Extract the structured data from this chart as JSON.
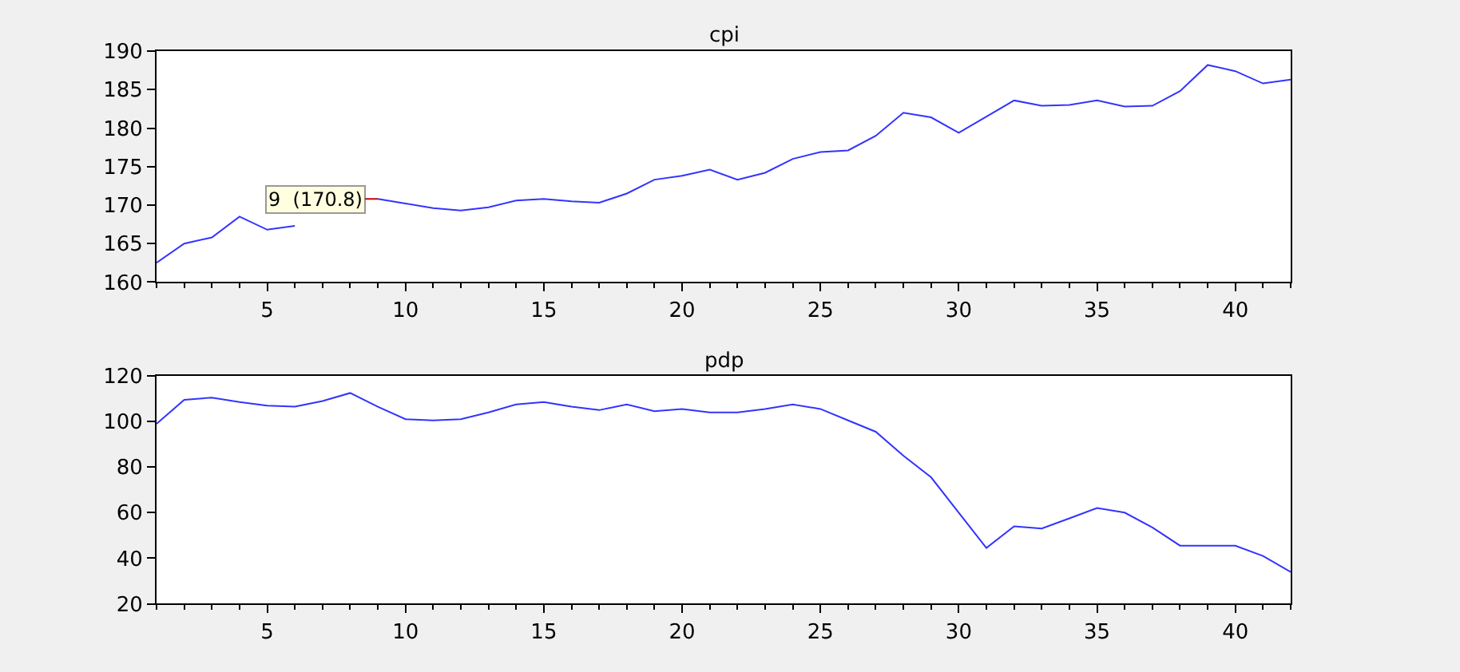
{
  "chart_data": [
    {
      "type": "line",
      "title": "cpi",
      "color": "#3333ff",
      "x": [
        1,
        2,
        3,
        4,
        5,
        6,
        7,
        8,
        9,
        10,
        11,
        12,
        13,
        14,
        15,
        16,
        17,
        18,
        19,
        20,
        21,
        22,
        23,
        24,
        25,
        26,
        27,
        28,
        29,
        30,
        31,
        32,
        33,
        34,
        35,
        36,
        37,
        38,
        39,
        40,
        41,
        42
      ],
      "values": [
        162.5,
        165,
        165.8,
        168.5,
        166.8,
        167.3,
        null,
        null,
        170.8,
        170.2,
        169.6,
        169.3,
        169.7,
        170.6,
        170.8,
        170.5,
        170.3,
        171.5,
        173.3,
        173.8,
        174.6,
        173.3,
        174.2,
        176,
        176.9,
        177.1,
        179,
        182,
        181.4,
        179.4,
        181.5,
        183.6,
        182.9,
        183,
        183.6,
        182.8,
        182.9,
        184.8,
        188.2,
        187.4,
        185.8,
        186.3
      ],
      "xlim": [
        1,
        42
      ],
      "xticks": [
        5,
        10,
        15,
        20,
        25,
        30,
        35,
        40
      ],
      "ylim": [
        160,
        190
      ],
      "yticks": [
        160,
        165,
        170,
        175,
        180,
        185,
        190
      ],
      "annotations": [
        {
          "text": "9  (170.8)",
          "x": 9,
          "y": 170.8
        }
      ]
    },
    {
      "type": "line",
      "title": "pdp",
      "color": "#3333ff",
      "x": [
        1,
        2,
        3,
        4,
        5,
        6,
        7,
        8,
        9,
        10,
        11,
        12,
        13,
        14,
        15,
        16,
        17,
        18,
        19,
        20,
        21,
        22,
        23,
        24,
        25,
        26,
        27,
        28,
        29,
        30,
        31,
        32,
        33,
        34,
        35,
        36,
        37,
        38,
        39,
        40,
        41,
        42
      ],
      "values": [
        99,
        109.5,
        110.5,
        108.5,
        107,
        106.5,
        109,
        112.5,
        106.5,
        101,
        100.5,
        101,
        104,
        107.5,
        108.5,
        106.5,
        105,
        107.5,
        104.5,
        105.5,
        104,
        104,
        105.5,
        107.5,
        105.5,
        100.5,
        95.5,
        85,
        75.5,
        60,
        44.5,
        54,
        53,
        57.5,
        62,
        60,
        53.5,
        45.5,
        45.5,
        45.5,
        41,
        34
      ],
      "xlim": [
        1,
        42
      ],
      "xticks": [
        5,
        10,
        15,
        20,
        25,
        30,
        35,
        40
      ],
      "ylim": [
        20,
        120
      ],
      "yticks": [
        20,
        40,
        60,
        80,
        100,
        120
      ]
    }
  ]
}
